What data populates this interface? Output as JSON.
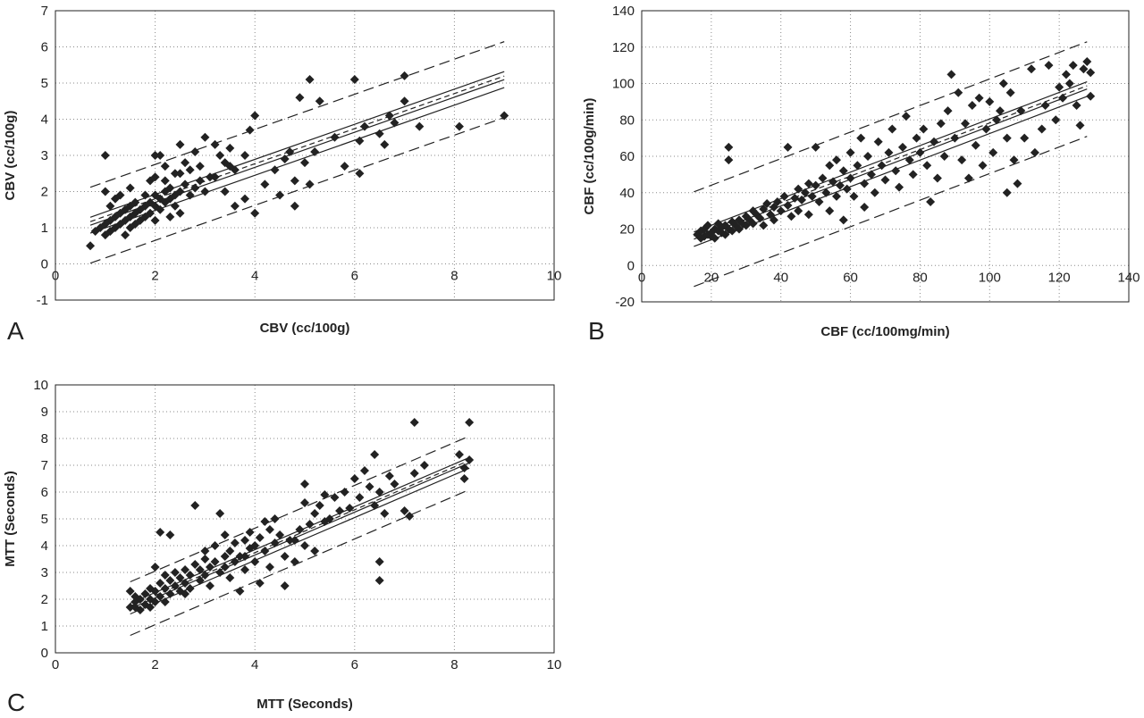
{
  "chart_data": [
    {
      "panel_label": "A",
      "type": "scatter",
      "xlabel": "CBV (cc/100g)",
      "ylabel": "CBV (cc/100g)",
      "xlim": [
        0,
        10
      ],
      "ylim": [
        -1,
        7
      ],
      "xticks": [
        0,
        2,
        4,
        6,
        8,
        10
      ],
      "yticks": [
        -1,
        0,
        1,
        2,
        3,
        4,
        5,
        6,
        7
      ],
      "grid": true,
      "regression": {
        "slope": 0.485,
        "intercept": 0.73,
        "x_range": [
          0.7,
          9.0
        ]
      },
      "confidence_band": 0.22,
      "prediction_band": 1.05,
      "points": [
        [
          0.7,
          0.5
        ],
        [
          0.8,
          0.9
        ],
        [
          0.9,
          1.0
        ],
        [
          1.0,
          0.8
        ],
        [
          1.0,
          1.1
        ],
        [
          1.1,
          1.2
        ],
        [
          1.1,
          0.9
        ],
        [
          1.2,
          1.0
        ],
        [
          1.2,
          1.3
        ],
        [
          1.3,
          1.1
        ],
        [
          1.3,
          1.4
        ],
        [
          1.4,
          1.2
        ],
        [
          1.4,
          1.5
        ],
        [
          1.5,
          1.3
        ],
        [
          1.5,
          1.6
        ],
        [
          1.5,
          1.0
        ],
        [
          1.6,
          1.4
        ],
        [
          1.6,
          1.7
        ],
        [
          1.7,
          1.5
        ],
        [
          1.7,
          1.2
        ],
        [
          1.8,
          1.6
        ],
        [
          1.8,
          1.9
        ],
        [
          1.9,
          1.4
        ],
        [
          1.9,
          1.7
        ],
        [
          2.0,
          1.6
        ],
        [
          2.0,
          1.9
        ],
        [
          2.0,
          1.2
        ],
        [
          2.1,
          1.8
        ],
        [
          2.1,
          1.5
        ],
        [
          2.2,
          2.0
        ],
        [
          2.2,
          1.7
        ],
        [
          2.3,
          1.8
        ],
        [
          2.3,
          2.1
        ],
        [
          2.4,
          1.6
        ],
        [
          2.4,
          1.9
        ],
        [
          2.5,
          2.0
        ],
        [
          2.5,
          1.4
        ],
        [
          2.6,
          2.2
        ],
        [
          2.7,
          1.9
        ],
        [
          2.8,
          2.1
        ],
        [
          2.9,
          2.3
        ],
        [
          3.0,
          2.0
        ],
        [
          1.0,
          2.0
        ],
        [
          1.2,
          1.8
        ],
        [
          1.5,
          2.1
        ],
        [
          1.9,
          2.3
        ],
        [
          2.2,
          2.7
        ],
        [
          2.4,
          2.5
        ],
        [
          2.6,
          2.8
        ],
        [
          1.0,
          3.0
        ],
        [
          2.0,
          3.0
        ],
        [
          2.1,
          3.0
        ],
        [
          2.5,
          3.3
        ],
        [
          2.8,
          3.1
        ],
        [
          3.0,
          3.5
        ],
        [
          3.2,
          3.3
        ],
        [
          3.4,
          2.8
        ],
        [
          3.5,
          3.2
        ],
        [
          3.6,
          2.6
        ],
        [
          3.8,
          3.0
        ],
        [
          3.9,
          3.7
        ],
        [
          4.0,
          4.1
        ],
        [
          3.2,
          2.4
        ],
        [
          3.4,
          2.0
        ],
        [
          3.6,
          1.6
        ],
        [
          3.8,
          1.8
        ],
        [
          4.0,
          1.4
        ],
        [
          4.2,
          2.2
        ],
        [
          4.4,
          2.6
        ],
        [
          4.5,
          1.9
        ],
        [
          4.6,
          2.9
        ],
        [
          4.7,
          3.1
        ],
        [
          4.8,
          2.3
        ],
        [
          4.8,
          1.6
        ],
        [
          5.0,
          2.8
        ],
        [
          5.1,
          2.2
        ],
        [
          5.2,
          3.1
        ],
        [
          4.9,
          4.6
        ],
        [
          5.1,
          5.1
        ],
        [
          5.3,
          4.5
        ],
        [
          5.6,
          3.5
        ],
        [
          5.8,
          2.7
        ],
        [
          6.0,
          5.1
        ],
        [
          6.1,
          3.4
        ],
        [
          6.1,
          2.5
        ],
        [
          6.2,
          3.8
        ],
        [
          6.5,
          3.6
        ],
        [
          6.6,
          3.3
        ],
        [
          6.7,
          4.1
        ],
        [
          6.8,
          3.9
        ],
        [
          7.0,
          5.2
        ],
        [
          7.0,
          4.5
        ],
        [
          7.3,
          3.8
        ],
        [
          8.1,
          3.8
        ],
        [
          9.0,
          4.1
        ],
        [
          1.1,
          1.6
        ],
        [
          1.3,
          1.9
        ],
        [
          1.4,
          0.8
        ],
        [
          1.6,
          1.1
        ],
        [
          1.8,
          1.3
        ],
        [
          2.0,
          2.4
        ],
        [
          2.2,
          2.3
        ],
        [
          2.3,
          1.3
        ],
        [
          2.5,
          2.5
        ],
        [
          2.7,
          2.6
        ],
        [
          2.9,
          2.7
        ],
        [
          3.1,
          2.4
        ],
        [
          3.3,
          3.0
        ],
        [
          3.5,
          2.7
        ]
      ]
    },
    {
      "panel_label": "B",
      "type": "scatter",
      "xlabel": "CBF (cc/100mg/min)",
      "ylabel": "CBF (cc/100g/min)",
      "xlim": [
        0,
        140
      ],
      "ylim": [
        -20,
        140
      ],
      "xticks": [
        0,
        20,
        40,
        60,
        80,
        100,
        120,
        140
      ],
      "yticks": [
        -20,
        0,
        20,
        40,
        60,
        80,
        100,
        120,
        140
      ],
      "grid": true,
      "regression": {
        "slope": 0.73,
        "intercept": 3.5,
        "x_range": [
          15,
          128
        ]
      },
      "confidence_band": 4.0,
      "prediction_band": 26.0,
      "points": [
        [
          16,
          17
        ],
        [
          17,
          15
        ],
        [
          17,
          19
        ],
        [
          18,
          16
        ],
        [
          18,
          20
        ],
        [
          19,
          17
        ],
        [
          19,
          22
        ],
        [
          20,
          16
        ],
        [
          20,
          18
        ],
        [
          21,
          20
        ],
        [
          21,
          15
        ],
        [
          22,
          19
        ],
        [
          22,
          23
        ],
        [
          23,
          18
        ],
        [
          23,
          21
        ],
        [
          24,
          17
        ],
        [
          24,
          22
        ],
        [
          25,
          20
        ],
        [
          25,
          58
        ],
        [
          25,
          65
        ],
        [
          26,
          19
        ],
        [
          26,
          24
        ],
        [
          27,
          22
        ],
        [
          28,
          25
        ],
        [
          28,
          20
        ],
        [
          29,
          23
        ],
        [
          30,
          27
        ],
        [
          30,
          22
        ],
        [
          31,
          25
        ],
        [
          32,
          30
        ],
        [
          32,
          23
        ],
        [
          33,
          28
        ],
        [
          34,
          26
        ],
        [
          35,
          31
        ],
        [
          35,
          22
        ],
        [
          36,
          34
        ],
        [
          37,
          28
        ],
        [
          38,
          32
        ],
        [
          38,
          25
        ],
        [
          39,
          35
        ],
        [
          40,
          30
        ],
        [
          41,
          38
        ],
        [
          42,
          33
        ],
        [
          42,
          65
        ],
        [
          43,
          27
        ],
        [
          44,
          37
        ],
        [
          45,
          42
        ],
        [
          45,
          30
        ],
        [
          46,
          36
        ],
        [
          47,
          40
        ],
        [
          48,
          45
        ],
        [
          48,
          28
        ],
        [
          49,
          38
        ],
        [
          50,
          44
        ],
        [
          50,
          65
        ],
        [
          51,
          35
        ],
        [
          52,
          48
        ],
        [
          53,
          40
        ],
        [
          54,
          55
        ],
        [
          54,
          30
        ],
        [
          55,
          46
        ],
        [
          56,
          58
        ],
        [
          56,
          38
        ],
        [
          57,
          44
        ],
        [
          58,
          52
        ],
        [
          58,
          25
        ],
        [
          59,
          42
        ],
        [
          60,
          62
        ],
        [
          60,
          48
        ],
        [
          61,
          38
        ],
        [
          62,
          55
        ],
        [
          63,
          70
        ],
        [
          64,
          45
        ],
        [
          64,
          32
        ],
        [
          65,
          60
        ],
        [
          66,
          50
        ],
        [
          67,
          40
        ],
        [
          68,
          68
        ],
        [
          69,
          55
        ],
        [
          70,
          47
        ],
        [
          71,
          62
        ],
        [
          72,
          75
        ],
        [
          73,
          52
        ],
        [
          74,
          43
        ],
        [
          75,
          65
        ],
        [
          76,
          82
        ],
        [
          77,
          58
        ],
        [
          78,
          50
        ],
        [
          79,
          70
        ],
        [
          80,
          62
        ],
        [
          81,
          75
        ],
        [
          82,
          55
        ],
        [
          83,
          35
        ],
        [
          84,
          68
        ],
        [
          85,
          48
        ],
        [
          86,
          78
        ],
        [
          87,
          60
        ],
        [
          88,
          85
        ],
        [
          89,
          105
        ],
        [
          90,
          70
        ],
        [
          91,
          95
        ],
        [
          92,
          58
        ],
        [
          93,
          78
        ],
        [
          94,
          48
        ],
        [
          95,
          88
        ],
        [
          96,
          66
        ],
        [
          97,
          92
        ],
        [
          98,
          55
        ],
        [
          99,
          75
        ],
        [
          100,
          90
        ],
        [
          101,
          62
        ],
        [
          102,
          80
        ],
        [
          103,
          85
        ],
        [
          104,
          100
        ],
        [
          105,
          70
        ],
        [
          105,
          40
        ],
        [
          106,
          95
        ],
        [
          107,
          58
        ],
        [
          108,
          45
        ],
        [
          109,
          85
        ],
        [
          110,
          70
        ],
        [
          112,
          108
        ],
        [
          113,
          62
        ],
        [
          115,
          75
        ],
        [
          116,
          88
        ],
        [
          117,
          110
        ],
        [
          119,
          80
        ],
        [
          120,
          98
        ],
        [
          121,
          92
        ],
        [
          122,
          105
        ],
        [
          123,
          100
        ],
        [
          124,
          110
        ],
        [
          125,
          88
        ],
        [
          126,
          77
        ],
        [
          127,
          108
        ],
        [
          128,
          112
        ],
        [
          129,
          93
        ],
        [
          129,
          106
        ]
      ]
    },
    {
      "panel_label": "C",
      "type": "scatter",
      "xlabel": "MTT (Seconds)",
      "ylabel": "MTT (Seconds)",
      "xlim": [
        0,
        10
      ],
      "ylim": [
        0,
        10
      ],
      "xticks": [
        0,
        2,
        4,
        6,
        8,
        10
      ],
      "yticks": [
        0,
        1,
        2,
        3,
        4,
        5,
        6,
        7,
        8,
        9,
        10
      ],
      "grid": true,
      "regression": {
        "slope": 0.8,
        "intercept": 0.45,
        "x_range": [
          1.5,
          8.3
        ]
      },
      "confidence_band": 0.2,
      "prediction_band": 1.0,
      "points": [
        [
          1.5,
          1.7
        ],
        [
          1.5,
          2.3
        ],
        [
          1.6,
          1.9
        ],
        [
          1.6,
          2.1
        ],
        [
          1.7,
          1.6
        ],
        [
          1.7,
          2.0
        ],
        [
          1.8,
          1.8
        ],
        [
          1.8,
          2.2
        ],
        [
          1.9,
          2.0
        ],
        [
          1.9,
          2.4
        ],
        [
          2.0,
          1.9
        ],
        [
          2.0,
          2.3
        ],
        [
          2.0,
          3.2
        ],
        [
          2.1,
          2.1
        ],
        [
          2.1,
          2.6
        ],
        [
          2.1,
          4.5
        ],
        [
          2.2,
          2.4
        ],
        [
          2.2,
          1.9
        ],
        [
          2.3,
          2.7
        ],
        [
          2.3,
          2.2
        ],
        [
          2.3,
          4.4
        ],
        [
          2.4,
          2.5
        ],
        [
          2.4,
          3.0
        ],
        [
          2.5,
          2.3
        ],
        [
          2.5,
          2.8
        ],
        [
          2.6,
          2.6
        ],
        [
          2.6,
          3.1
        ],
        [
          2.7,
          2.4
        ],
        [
          2.7,
          2.9
        ],
        [
          2.8,
          3.3
        ],
        [
          2.8,
          5.5
        ],
        [
          2.9,
          2.7
        ],
        [
          2.9,
          3.1
        ],
        [
          3.0,
          2.9
        ],
        [
          3.0,
          3.5
        ],
        [
          3.1,
          3.2
        ],
        [
          3.1,
          2.5
        ],
        [
          3.2,
          3.4
        ],
        [
          3.2,
          4.0
        ],
        [
          3.3,
          3.0
        ],
        [
          3.3,
          5.2
        ],
        [
          3.4,
          3.6
        ],
        [
          3.4,
          3.2
        ],
        [
          3.5,
          3.8
        ],
        [
          3.5,
          2.8
        ],
        [
          3.6,
          3.4
        ],
        [
          3.6,
          4.1
        ],
        [
          3.7,
          3.6
        ],
        [
          3.7,
          2.3
        ],
        [
          3.8,
          4.2
        ],
        [
          3.8,
          3.1
        ],
        [
          3.9,
          3.9
        ],
        [
          3.9,
          4.5
        ],
        [
          4.0,
          4.0
        ],
        [
          4.0,
          3.4
        ],
        [
          4.1,
          4.3
        ],
        [
          4.1,
          2.6
        ],
        [
          4.2,
          3.8
        ],
        [
          4.3,
          4.6
        ],
        [
          4.3,
          3.2
        ],
        [
          4.4,
          4.1
        ],
        [
          4.4,
          5.0
        ],
        [
          4.5,
          4.4
        ],
        [
          4.6,
          3.6
        ],
        [
          4.6,
          2.5
        ],
        [
          4.7,
          4.2
        ],
        [
          4.8,
          3.4
        ],
        [
          4.9,
          4.6
        ],
        [
          5.0,
          4.0
        ],
        [
          5.0,
          5.6
        ],
        [
          5.0,
          6.3
        ],
        [
          5.1,
          4.8
        ],
        [
          5.2,
          5.2
        ],
        [
          5.2,
          3.8
        ],
        [
          5.3,
          5.5
        ],
        [
          5.4,
          4.9
        ],
        [
          5.5,
          5.0
        ],
        [
          5.6,
          5.8
        ],
        [
          5.7,
          5.3
        ],
        [
          5.8,
          6.0
        ],
        [
          5.9,
          5.4
        ],
        [
          6.0,
          6.5
        ],
        [
          6.1,
          5.8
        ],
        [
          6.2,
          6.8
        ],
        [
          6.3,
          6.2
        ],
        [
          6.4,
          5.5
        ],
        [
          6.4,
          7.4
        ],
        [
          6.5,
          6.0
        ],
        [
          6.5,
          3.4
        ],
        [
          6.5,
          2.7
        ],
        [
          6.6,
          5.2
        ],
        [
          6.7,
          6.6
        ],
        [
          6.8,
          6.3
        ],
        [
          7.0,
          5.3
        ],
        [
          7.1,
          5.1
        ],
        [
          7.2,
          6.7
        ],
        [
          7.2,
          8.6
        ],
        [
          7.4,
          7.0
        ],
        [
          8.1,
          7.4
        ],
        [
          8.2,
          6.5
        ],
        [
          8.2,
          6.9
        ],
        [
          8.3,
          7.2
        ],
        [
          8.3,
          8.6
        ],
        [
          1.6,
          1.7
        ],
        [
          1.9,
          1.7
        ],
        [
          2.2,
          2.9
        ],
        [
          2.6,
          2.2
        ],
        [
          3.0,
          3.8
        ],
        [
          3.4,
          4.4
        ],
        [
          3.8,
          3.6
        ],
        [
          4.2,
          4.9
        ],
        [
          4.8,
          4.2
        ],
        [
          5.4,
          5.9
        ]
      ]
    }
  ]
}
